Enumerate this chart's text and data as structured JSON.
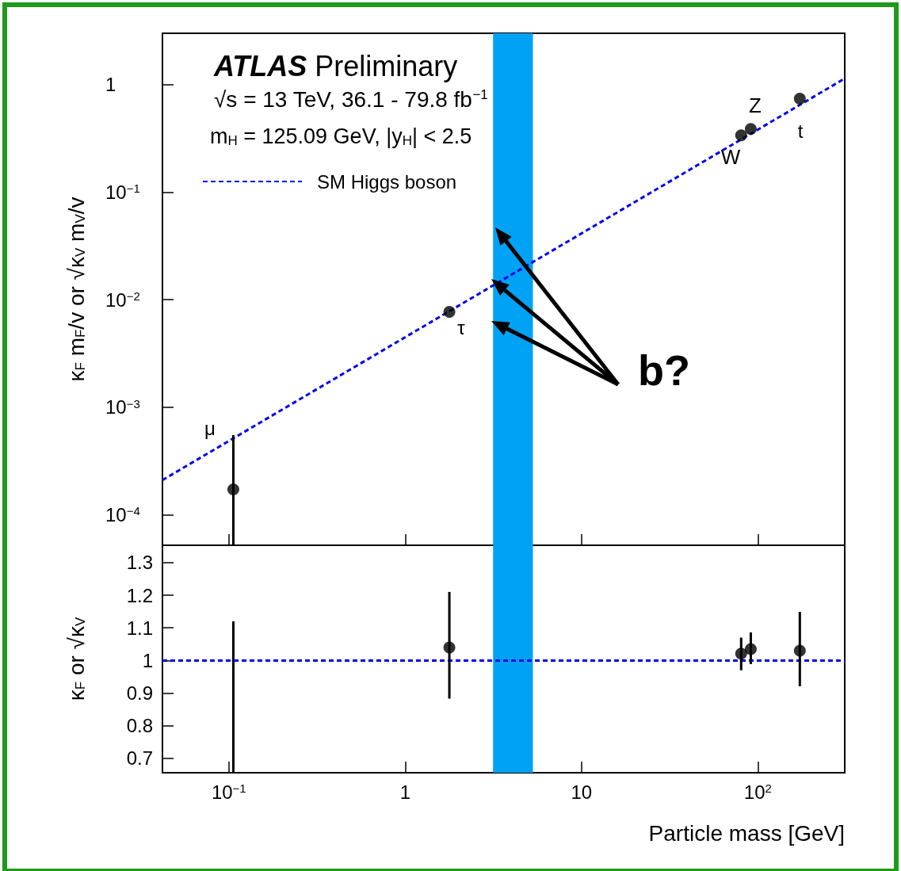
{
  "chart_data": [
    {
      "type": "scatter",
      "title": "ATLAS Preliminary",
      "subtitle": "√s = 13 TeV, 36.1 - 79.8 fb$^{−1}$",
      "ylabel": "κ$_{F}$ m$_{F}$/v or √κ$_{V}$ m$_{V}$/v",
      "annotations": [
        "m$_{H}$ = 125.09 GeV, |y$_{H}$| < 2.5",
        "b?",
        "μ",
        "τ",
        "W",
        "Z",
        "t"
      ],
      "log": "xy",
      "xlim": [
        0.042,
        311
      ],
      "ylim": [
        5.2e-05,
        3
      ],
      "xticks": [
        {
          "value": 0.1,
          "label": null
        },
        {
          "value": 1,
          "label": null
        },
        {
          "value": 10,
          "label": null
        },
        {
          "value": 100,
          "label": null
        }
      ],
      "yticks": [
        {
          "value": 0.0001,
          "label": "10$^{−4}$"
        },
        {
          "value": 0.001,
          "label": "10$^{−3}$"
        },
        {
          "value": 0.01,
          "label": "10$^{−2}$"
        },
        {
          "value": 0.1,
          "label": "10$^{−1}$"
        },
        1
      ],
      "tick_labels": "y",
      "grid": false,
      "legend": "top left",
      "bands": [
        {
          "axis": "x",
          "from": 3.15,
          "to": 5.3,
          "color": "#00a2f5"
        }
      ],
      "series": [
        {
          "name": "SM Higgs boson",
          "type": "line",
          "color": "#0000ee",
          "line_style": "dashed",
          "marker": "none",
          "x": [
            0.042,
            311
          ],
          "values": [
            0.00021,
            1.14
          ]
        },
        {
          "color": "#000000",
          "marker": "circle",
          "x": [
            0.106,
            1.78,
            80.4,
            91.2,
            173
          ],
          "values": [
            0.000172,
            0.0077,
            0.338,
            0.387,
            0.74
          ],
          "errors": [
            [
              5.2e-05,
              0.00055
            ],
            null,
            null,
            null,
            null
          ]
        }
      ]
    },
    {
      "type": "scatter",
      "xlabel": "Particle mass [GeV]",
      "ylabel": "κ$_{F}$ or √κ$_{V}$",
      "log": "x",
      "xlim": [
        0.042,
        311
      ],
      "ylim": [
        0.656,
        1.353
      ],
      "xticks": [
        {
          "value": 0.1,
          "label": "10$^{−1}$"
        },
        {
          "value": 1,
          "label": "1"
        },
        {
          "value": 10,
          "label": "10"
        },
        {
          "value": 100,
          "label": "10$^{2}$"
        }
      ],
      "yticks": [
        0.7,
        0.8,
        0.9,
        1,
        1.1,
        1.2,
        1.3
      ],
      "grid": false,
      "bands": [
        {
          "axis": "x",
          "from": 3.15,
          "to": 5.3,
          "color": "#00a2f5"
        }
      ],
      "ref_lines": [
        {
          "axis": "y",
          "value": 1,
          "color": "#0000ee",
          "line_style": "dashed"
        }
      ],
      "series": [
        {
          "type": "line",
          "color": "#000000",
          "marker": "none",
          "line_style": "solid",
          "x": [
            0.106,
            0.106
          ],
          "values": [
            0.656,
            1.12
          ]
        },
        {
          "color": "#000000",
          "marker": "circle",
          "x": [
            1.78,
            80.4,
            91.2,
            173
          ],
          "values": [
            1.04,
            1.021,
            1.035,
            1.03
          ],
          "errors": [
            [
              0.883,
              1.21
            ],
            [
              0.97,
              1.07
            ],
            [
              0.989,
              1.086
            ],
            [
              0.921,
              1.149
            ]
          ]
        }
      ]
    }
  ]
}
